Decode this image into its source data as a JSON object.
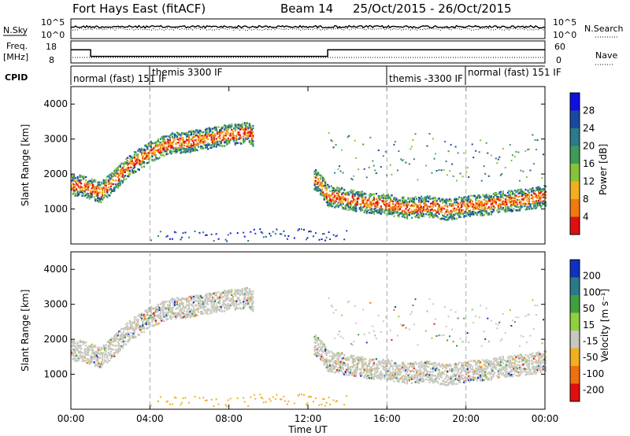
{
  "header": {
    "station": "Fort Hays East (fitACF)",
    "beam": "Beam 14",
    "date_range": "25/Oct/2015 - 26/Oct/2015"
  },
  "strip_labels": {
    "nsky": "N.Sky",
    "nsearch": "N.Search",
    "freq": "Freq.",
    "freq_unit": "[MHz]",
    "nave": "Nave",
    "cpid": "CPID",
    "nsky_ticks": [
      "10^5",
      "10^0"
    ],
    "nsearch_ticks": [
      "10^5",
      "10^0"
    ],
    "freq_ticks": [
      "18",
      "8"
    ],
    "nave_ticks": [
      "60",
      "0"
    ]
  },
  "cpid_segments": [
    {
      "label": "normal (fast) 151 IF",
      "start_h": 0,
      "end_h": 4
    },
    {
      "label": "themis 3300 IF",
      "start_h": 4,
      "end_h": 16
    },
    {
      "label": "themis -3300 IF",
      "start_h": 16,
      "end_h": 20
    },
    {
      "label": "normal (fast) 151 IF",
      "start_h": 20,
      "end_h": 24
    }
  ],
  "chart_data": [
    {
      "type": "line",
      "name": "frequency",
      "x": [
        0,
        1,
        13,
        24
      ],
      "y": [
        14,
        11,
        14,
        14
      ],
      "ylim": [
        8,
        18
      ]
    },
    {
      "type": "heatmap",
      "name": "power",
      "ylabel": "Slant Range [km]",
      "ylim": [
        0,
        4500
      ],
      "xlim": [
        0,
        24
      ],
      "yticks": [
        "1000",
        "2000",
        "3000",
        "4000"
      ],
      "colorbar": {
        "label": "Power [dB]",
        "ticks": [
          "4",
          "8",
          "12",
          "16",
          "20",
          "24",
          "28"
        ],
        "colors": [
          "#1010e0",
          "#1a4aa0",
          "#2c7a8a",
          "#3f9a5a",
          "#86c23a",
          "#f0b020",
          "#f07a10",
          "#e01010"
        ]
      },
      "main_band_x": [
        0,
        0.5,
        1,
        1.5,
        2,
        3,
        4,
        5,
        6,
        7,
        8,
        9,
        12.5,
        13,
        14,
        15,
        16,
        17,
        18,
        19,
        20,
        21,
        22,
        23,
        24
      ],
      "main_band_y": [
        1700,
        1700,
        1600,
        1500,
        1750,
        2300,
        2650,
        2900,
        2950,
        3050,
        3150,
        3200,
        1800,
        1400,
        1300,
        1200,
        1150,
        1050,
        1100,
        1000,
        1100,
        1150,
        1250,
        1300,
        1400
      ]
    },
    {
      "type": "heatmap",
      "name": "velocity",
      "ylabel": "Slant Range [km]",
      "xlabel": "Time UT",
      "ylim": [
        0,
        4500
      ],
      "xlim": [
        0,
        24
      ],
      "yticks": [
        "1000",
        "2000",
        "3000",
        "4000"
      ],
      "xticks": [
        "00:00",
        "04:00",
        "08:00",
        "12:00",
        "16:00",
        "20:00",
        "00:00"
      ],
      "colorbar": {
        "label": "Velocity [m s⁻¹]",
        "ticks": [
          "200",
          "100",
          "50",
          "15",
          "-15",
          "-50",
          "-100",
          "-200"
        ],
        "colors": [
          "#1030c0",
          "#2a7a8a",
          "#40a040",
          "#90d040",
          "#c8c8c0",
          "#f0b020",
          "#f07010",
          "#e01010"
        ]
      }
    }
  ]
}
